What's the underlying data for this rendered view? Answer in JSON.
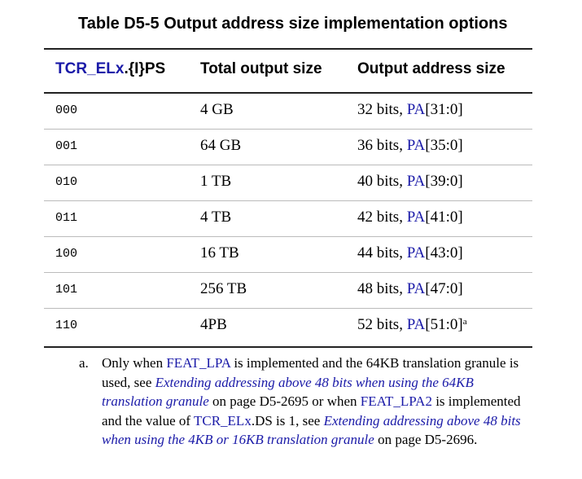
{
  "title": "Table D5-5 Output address size implementation options",
  "headers": {
    "col1_link": "TCR_ELx",
    "col1_rest": ".{I}PS",
    "col2": "Total output size",
    "col3": "Output address size"
  },
  "rows": [
    {
      "ps": "000",
      "size": "4 GB",
      "bits": "32 bits, ",
      "pa": "PA",
      "range": "[31:0]",
      "note": ""
    },
    {
      "ps": "001",
      "size": "64 GB",
      "bits": "36 bits, ",
      "pa": "PA",
      "range": "[35:0]",
      "note": ""
    },
    {
      "ps": "010",
      "size": "1 TB",
      "bits": "40 bits, ",
      "pa": "PA",
      "range": "[39:0]",
      "note": ""
    },
    {
      "ps": "011",
      "size": "4 TB",
      "bits": "42 bits, ",
      "pa": "PA",
      "range": "[41:0]",
      "note": ""
    },
    {
      "ps": "100",
      "size": "16 TB",
      "bits": "44 bits, ",
      "pa": "PA",
      "range": "[43:0]",
      "note": ""
    },
    {
      "ps": "101",
      "size": "256 TB",
      "bits": "48 bits, ",
      "pa": "PA",
      "range": "[47:0]",
      "note": ""
    },
    {
      "ps": "110",
      "size": "4PB",
      "bits": "52 bits, ",
      "pa": "PA",
      "range": "[51:0]",
      "note": "a"
    }
  ],
  "footnote": {
    "label": "a.",
    "t1": "Only when ",
    "l1": "FEAT_LPA",
    "t2": " is implemented and the 64KB translation granule is used, see ",
    "l2": "Extending addressing above 48 bits when using the 64KB translation granule",
    "t3": " on page D5-2695 or when ",
    "l3": "FEAT_LPA2",
    "t4": " is implemented and the value of ",
    "l4": "TCR_ELx",
    "t5": ".DS is 1, see ",
    "l5": "Extending addressing above 48 bits when using the 4KB or 16KB translation granule",
    "t6": " on page D5-2696."
  }
}
